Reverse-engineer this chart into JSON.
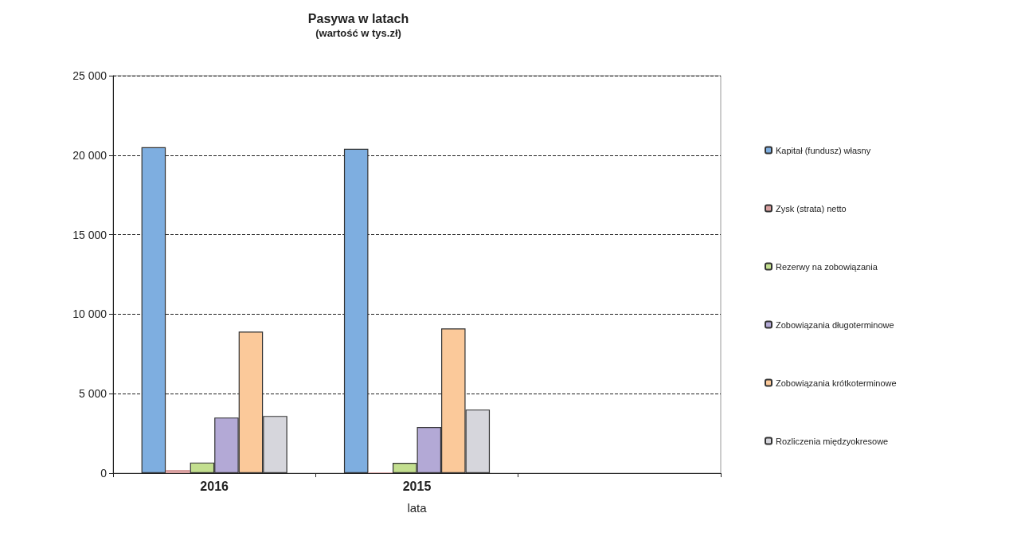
{
  "chart_data": {
    "type": "bar",
    "title": "Pasywa w latach",
    "subtitle": "(wartość w tys.zł)",
    "xlabel": "lata",
    "categories": [
      "2016",
      "2015",
      null
    ],
    "series": [
      {
        "name": "Kapitał (fundusz) własny",
        "color": "#7eaee0",
        "values": [
          20500,
          20400,
          null
        ]
      },
      {
        "name": "Zysk (strata) netto",
        "color": "#d9a0a0",
        "values": [
          200,
          50,
          null
        ]
      },
      {
        "name": "Rezerwy na zobowiązania",
        "color": "#c3df8f",
        "values": [
          670,
          650,
          null
        ]
      },
      {
        "name": "Zobowiązania długoterminowe",
        "color": "#b3a9d6",
        "values": [
          3500,
          2900,
          null
        ]
      },
      {
        "name": "Zobowiązania krótkoterminowe",
        "color": "#fbc99a",
        "values": [
          8900,
          9100,
          null
        ]
      },
      {
        "name": "Rozliczenia międzyokresowe",
        "color": "#d6d6dc",
        "values": [
          3600,
          4000,
          null
        ]
      }
    ],
    "ylim": [
      0,
      25000
    ],
    "yticks": [
      {
        "value": 0,
        "label": "0"
      },
      {
        "value": 5000,
        "label": "5 000"
      },
      {
        "value": 10000,
        "label": "10 000"
      },
      {
        "value": 15000,
        "label": "15 000"
      },
      {
        "value": 20000,
        "label": "20 000"
      },
      {
        "value": 25000,
        "label": "25 000"
      }
    ],
    "grid": "y",
    "legend": "right"
  }
}
